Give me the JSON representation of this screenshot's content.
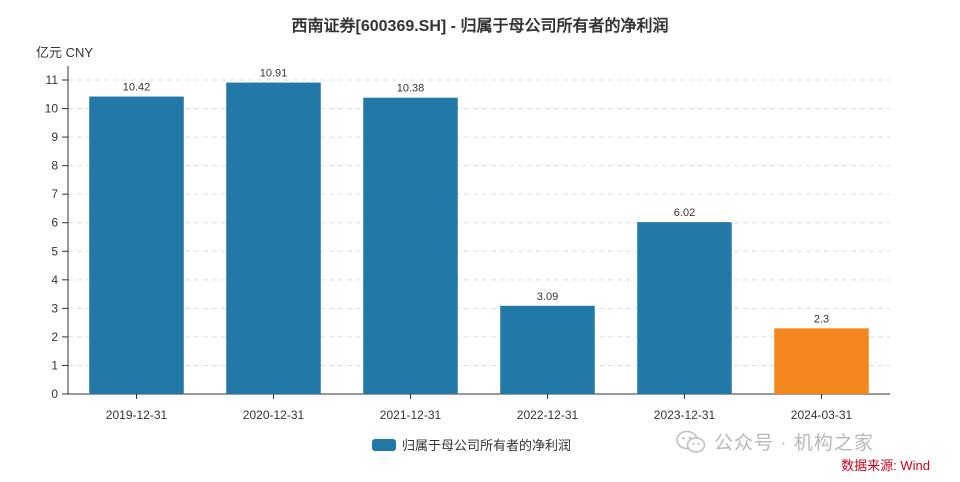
{
  "chart_data": {
    "type": "bar",
    "title": "西南证券[600369.SH] - 归属于母公司所有者的净利润",
    "y_unit": "亿元  CNY",
    "categories": [
      "2019-12-31",
      "2020-12-31",
      "2021-12-31",
      "2022-12-31",
      "2023-12-31",
      "2024-03-31"
    ],
    "series": [
      {
        "name": "归属于母公司所有者的净利润",
        "values": [
          10.42,
          10.91,
          10.38,
          3.09,
          6.02,
          2.3
        ],
        "labels": [
          "10.42",
          "10.91",
          "10.38",
          "3.09",
          "6.02",
          "2.3"
        ],
        "colors": [
          "#2278a6",
          "#2278a6",
          "#2278a6",
          "#2278a6",
          "#2278a6",
          "#f5871f"
        ]
      }
    ],
    "ylim": [
      0,
      11
    ],
    "yticks": [
      0,
      1,
      2,
      3,
      4,
      5,
      6,
      7,
      8,
      9,
      10,
      11
    ],
    "grid": true,
    "legend_position": "bottom-center"
  },
  "watermark": {
    "text": "公众号 · 机构之家",
    "icon": "wechat-icon"
  },
  "source": "数据来源: Wind",
  "colors": {
    "primary": "#2278a6",
    "highlight": "#f5871f",
    "source": "#d0021b"
  }
}
